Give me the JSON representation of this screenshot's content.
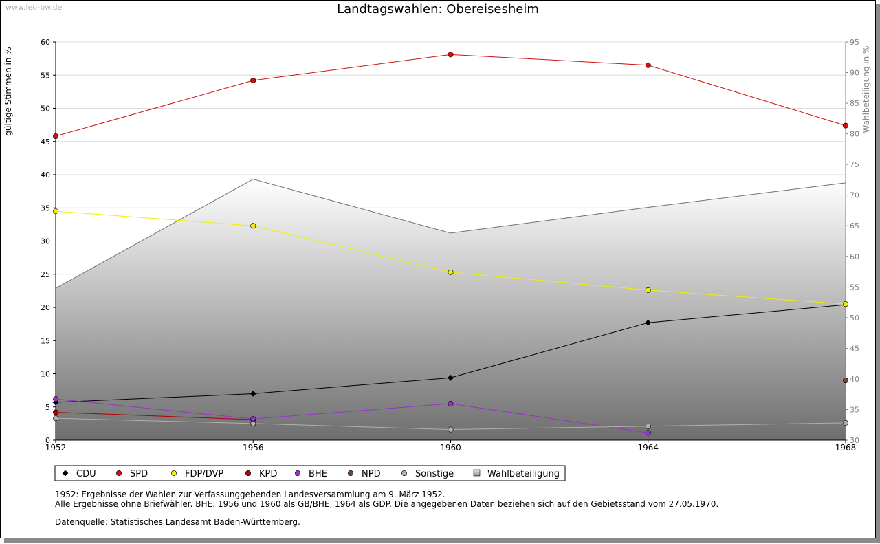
{
  "watermark": "www.leo-bw.de",
  "chart_data": {
    "type": "line",
    "title": "Landtagswahlen: Obereisesheim",
    "x": [
      1952,
      1956,
      1960,
      1964,
      1968
    ],
    "ylabel": "gültige Stimmen in %",
    "ylabel_right": "Wahlbeteiligung in %",
    "ylim": [
      0,
      60
    ],
    "ylim_right": [
      30,
      95
    ],
    "yticks": [
      0,
      5,
      10,
      15,
      20,
      25,
      30,
      35,
      40,
      45,
      50,
      55,
      60
    ],
    "yticks_right": [
      30,
      35,
      40,
      45,
      50,
      55,
      60,
      65,
      70,
      75,
      80,
      85,
      90,
      95
    ],
    "grid": true,
    "legend_position": "bottom-left",
    "series": [
      {
        "name": "CDU",
        "color": "#000000",
        "values": [
          5.7,
          7.0,
          9.4,
          17.7,
          20.4
        ]
      },
      {
        "name": "SPD",
        "color": "#d01010",
        "values": [
          45.8,
          54.2,
          58.1,
          56.5,
          47.4
        ]
      },
      {
        "name": "FDP/DVP",
        "color": "#f0f000",
        "values": [
          34.5,
          32.3,
          25.3,
          22.6,
          20.5
        ]
      },
      {
        "name": "KPD",
        "color": "#b00000",
        "values": [
          4.2,
          3.1,
          null,
          null,
          null
        ]
      },
      {
        "name": "BHE",
        "color": "#9b30d0",
        "values": [
          6.2,
          3.2,
          5.5,
          1.1,
          null
        ]
      },
      {
        "name": "NPD",
        "color": "#6b4a3a",
        "values": [
          null,
          null,
          null,
          null,
          9.0
        ]
      },
      {
        "name": "Sonstige",
        "color": "#b0b0b0",
        "values": [
          3.3,
          2.5,
          1.6,
          2.1,
          2.6
        ]
      }
    ],
    "turnout": {
      "name": "Wahlbeteiligung",
      "color": "#808080",
      "values": [
        54.8,
        72.6,
        63.8,
        68.0,
        72.0
      ]
    }
  },
  "notes": {
    "line1": "1952: Ergebnisse der Wahlen zur Verfassunggebenden Landesversammlung am 9. März 1952.",
    "line2": "Alle Ergebnisse ohne Briefwähler. BHE: 1956 und 1960 als GB/BHE, 1964 als GDP. Die angegebenen Daten beziehen sich auf den Gebietsstand vom 27.05.1970.",
    "source": "Datenquelle: Statistisches Landesamt Baden-Württemberg."
  }
}
